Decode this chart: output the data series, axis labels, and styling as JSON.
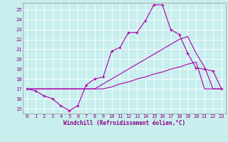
{
  "xlabel": "Windchill (Refroidissement éolien,°C)",
  "bg_color": "#c8eeee",
  "line_color": "#aa00aa",
  "grid_color": "#aadddd",
  "xlim_min": -0.5,
  "xlim_max": 23.5,
  "ylim_min": 14.5,
  "ylim_max": 25.7,
  "yticks": [
    15,
    16,
    17,
    18,
    19,
    20,
    21,
    22,
    23,
    24,
    25
  ],
  "xticks": [
    0,
    1,
    2,
    3,
    4,
    5,
    6,
    7,
    8,
    9,
    10,
    11,
    12,
    13,
    14,
    15,
    16,
    17,
    18,
    19,
    20,
    21,
    22,
    23
  ],
  "curve1_x": [
    0,
    1,
    2,
    3,
    4,
    5,
    6,
    7,
    8,
    9,
    10,
    11,
    12,
    13,
    14,
    15,
    16,
    17,
    18,
    19,
    20,
    21,
    22,
    23
  ],
  "curve1_y": [
    17.0,
    16.8,
    16.3,
    16.0,
    15.3,
    14.8,
    15.3,
    17.4,
    18.0,
    18.2,
    20.8,
    21.2,
    22.7,
    22.7,
    23.9,
    25.5,
    25.5,
    23.0,
    22.5,
    20.6,
    19.1,
    19.0,
    18.8,
    17.0
  ],
  "curve2_x": [
    0,
    1,
    2,
    3,
    4,
    5,
    6,
    7,
    8,
    9,
    10,
    11,
    12,
    13,
    14,
    15,
    16,
    17,
    18,
    19,
    20,
    21,
    22,
    23
  ],
  "curve2_y": [
    17.0,
    17.0,
    17.0,
    17.0,
    17.0,
    17.0,
    17.0,
    17.0,
    17.0,
    17.5,
    18.0,
    18.5,
    19.0,
    19.5,
    20.0,
    20.5,
    21.0,
    21.5,
    22.0,
    22.3,
    20.6,
    19.2,
    17.0,
    17.0
  ],
  "curve3_x": [
    0,
    1,
    2,
    3,
    4,
    5,
    6,
    7,
    8,
    9,
    10,
    11,
    12,
    13,
    14,
    15,
    16,
    17,
    18,
    19,
    20,
    21,
    22,
    23
  ],
  "curve3_y": [
    17.0,
    17.0,
    17.0,
    17.0,
    17.0,
    17.0,
    17.0,
    17.0,
    17.0,
    17.0,
    17.2,
    17.5,
    17.7,
    18.0,
    18.2,
    18.5,
    18.7,
    19.0,
    19.2,
    19.5,
    19.7,
    17.0,
    17.0,
    17.0
  ]
}
